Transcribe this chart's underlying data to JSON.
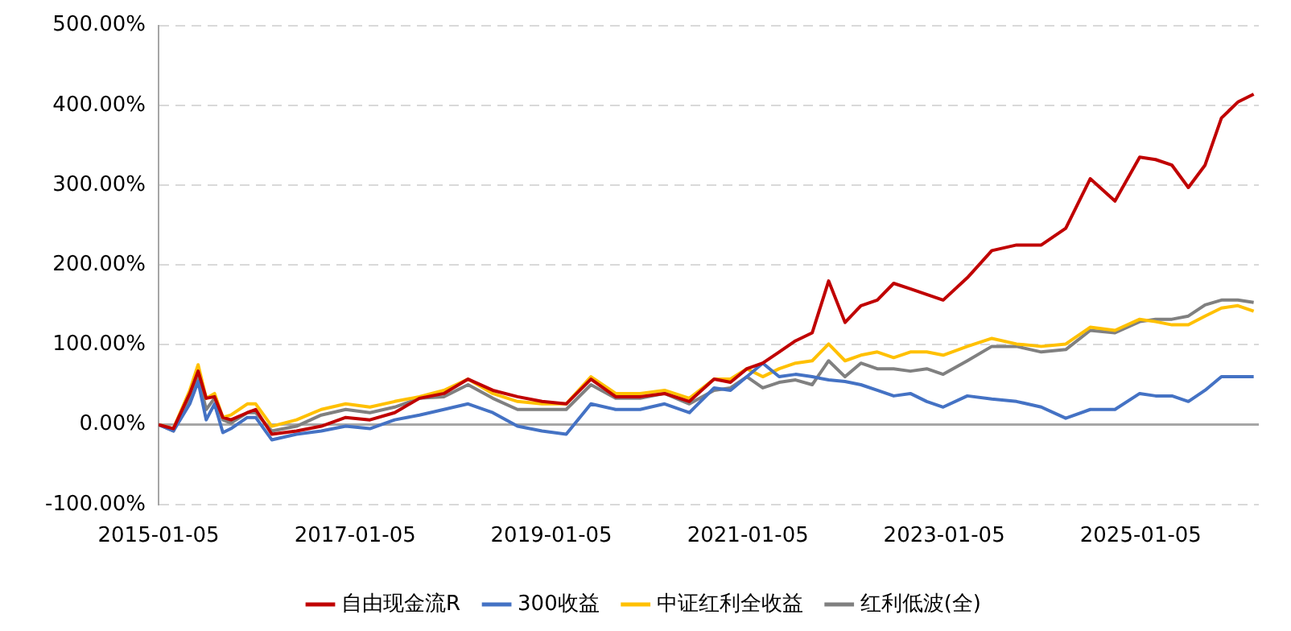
{
  "chart_data": {
    "type": "line",
    "x": [
      "2015-01-05",
      "2015-03",
      "2015-05",
      "2015-06",
      "2015-07",
      "2015-08",
      "2015-09",
      "2015-10",
      "2015-12",
      "2016-01",
      "2016-03",
      "2016-06",
      "2016-09",
      "2016-12",
      "2017-03",
      "2017-06",
      "2017-09",
      "2017-12",
      "2018-03",
      "2018-06",
      "2018-09",
      "2018-12",
      "2019-03",
      "2019-06",
      "2019-09",
      "2019-12",
      "2020-03",
      "2020-06",
      "2020-09",
      "2020-11",
      "2021-01",
      "2021-03",
      "2021-05",
      "2021-07",
      "2021-09",
      "2021-11",
      "2022-01",
      "2022-03",
      "2022-05",
      "2022-07",
      "2022-09",
      "2022-11",
      "2023-01",
      "2023-04",
      "2023-07",
      "2023-10",
      "2024-01",
      "2024-04",
      "2024-07",
      "2024-10",
      "2025-01",
      "2025-03",
      "2025-05",
      "2025-07",
      "2025-09",
      "2025-11",
      "2026-01",
      "2026-03"
    ],
    "series": [
      {
        "name": "自由现金流R",
        "color": "#c00000",
        "values": [
          0,
          -5,
          39,
          67,
          33,
          35,
          9,
          6,
          15,
          19,
          -12,
          -8,
          -2,
          9,
          6,
          15,
          33,
          39,
          57,
          43,
          35,
          29,
          26,
          57,
          35,
          35,
          39,
          29,
          57,
          53,
          70,
          77,
          91,
          105,
          115,
          180,
          128,
          149,
          156,
          177,
          170,
          163,
          156,
          184,
          218,
          225,
          225,
          246,
          308,
          280,
          335,
          332,
          325,
          297,
          325,
          384,
          404,
          414
        ]
      },
      {
        "name": "300收益",
        "color": "#4472c4",
        "values": [
          0,
          -8,
          26,
          54,
          6,
          26,
          -10,
          -5,
          9,
          9,
          -19,
          -12,
          -8,
          -2,
          -5,
          6,
          12,
          19,
          26,
          15,
          -2,
          -8,
          -12,
          26,
          19,
          19,
          26,
          15,
          46,
          43,
          60,
          77,
          60,
          63,
          60,
          56,
          54,
          50,
          43,
          36,
          39,
          29,
          22,
          36,
          32,
          29,
          22,
          8,
          19,
          19,
          39,
          36,
          36,
          29,
          43,
          60,
          60,
          60
        ]
      },
      {
        "name": "中证红利全收益",
        "color": "#ffc000",
        "values": [
          0,
          -5,
          43,
          75,
          33,
          39,
          9,
          12,
          26,
          26,
          -2,
          6,
          19,
          26,
          22,
          29,
          35,
          43,
          57,
          39,
          29,
          26,
          26,
          60,
          39,
          39,
          43,
          33,
          57,
          57,
          70,
          60,
          70,
          77,
          80,
          101,
          80,
          87,
          91,
          84,
          91,
          91,
          87,
          98,
          108,
          101,
          98,
          101,
          122,
          118,
          132,
          129,
          125,
          125,
          136,
          146,
          149,
          142
        ]
      },
      {
        "name": "红利低波(全)",
        "color": "#808080",
        "values": [
          0,
          -8,
          33,
          60,
          19,
          33,
          6,
          2,
          15,
          15,
          -8,
          -2,
          12,
          19,
          15,
          22,
          33,
          35,
          50,
          33,
          19,
          19,
          19,
          50,
          33,
          33,
          39,
          26,
          43,
          46,
          60,
          46,
          53,
          56,
          50,
          80,
          60,
          77,
          70,
          70,
          67,
          70,
          63,
          80,
          98,
          98,
          91,
          94,
          118,
          115,
          129,
          132,
          132,
          136,
          150,
          156,
          156,
          153
        ]
      }
    ],
    "xlim": [
      "2015-01-05",
      "2026-03-20"
    ],
    "xticks": [
      "2015-01-05",
      "2017-01-05",
      "2019-01-05",
      "2021-01-05",
      "2023-01-05",
      "2025-01-05"
    ],
    "ylim": [
      -100,
      500
    ],
    "yticks": [
      {
        "value": -100,
        "label": "-100.00%"
      },
      {
        "value": 0,
        "label": "0.00%"
      },
      {
        "value": 100,
        "label": "100.00%"
      },
      {
        "value": 200,
        "label": "200.00%"
      },
      {
        "value": 300,
        "label": "300.00%"
      },
      {
        "value": 400,
        "label": "400.00%"
      },
      {
        "value": 500,
        "label": "500.00%"
      }
    ],
    "ref_lines": [
      {
        "axis": "y",
        "value": 0,
        "color": "#a6a6a6",
        "line_style": "solid"
      }
    ],
    "grid": "y",
    "legend": "bottom",
    "line_style": "solid",
    "marker": "none"
  }
}
